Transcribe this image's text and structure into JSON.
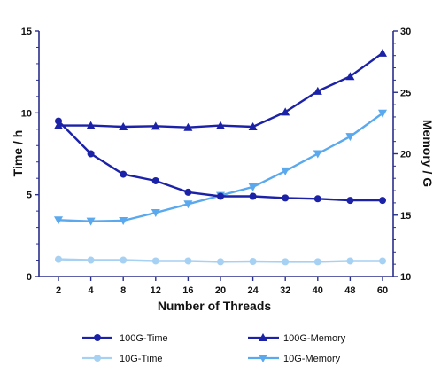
{
  "chart_data": {
    "type": "line",
    "xlabel": "Number of Threads",
    "ylabel_left": "Time / h",
    "ylabel_right": "Memory / G",
    "categories": [
      "2",
      "4",
      "8",
      "12",
      "16",
      "20",
      "24",
      "32",
      "40",
      "48",
      "60"
    ],
    "ylim_left": [
      0,
      15
    ],
    "yticks_left": [
      "0",
      "5",
      "10",
      "15"
    ],
    "ylim_right": [
      10,
      30
    ],
    "yticks_right": [
      "10",
      "15",
      "20",
      "25",
      "30"
    ],
    "grid": false,
    "legend_position": "bottom",
    "series": [
      {
        "name": "100G-Time",
        "axis": "left",
        "marker": "circle",
        "color": "#1c22a8",
        "values": [
          9.5,
          7.5,
          6.25,
          5.85,
          5.15,
          4.9,
          4.9,
          4.8,
          4.75,
          4.65,
          4.65
        ]
      },
      {
        "name": "100G-Memory",
        "axis": "right",
        "marker": "triangle-up",
        "color": "#1c22a8",
        "values": [
          22.3,
          22.3,
          22.2,
          22.25,
          22.15,
          22.3,
          22.2,
          23.4,
          25.1,
          26.3,
          28.2
        ]
      },
      {
        "name": "10G-Time",
        "axis": "left",
        "marker": "circle",
        "color": "#a6d1f3",
        "values": [
          1.05,
          1.0,
          1.0,
          0.95,
          0.95,
          0.9,
          0.92,
          0.9,
          0.9,
          0.95,
          0.95
        ]
      },
      {
        "name": "10G-Memory",
        "axis": "right",
        "marker": "triangle-down",
        "color": "#5aa8ee",
        "values": [
          14.6,
          14.5,
          14.55,
          15.2,
          15.9,
          16.6,
          17.3,
          18.6,
          20.0,
          21.4,
          23.3
        ]
      }
    ]
  },
  "legend": [
    {
      "label": "100G-Time",
      "marker": "circle",
      "color": "#1c22a8"
    },
    {
      "label": "100G-Memory",
      "marker": "triangle-up",
      "color": "#1c22a8"
    },
    {
      "label": "10G-Time",
      "marker": "circle",
      "color": "#a6d1f3"
    },
    {
      "label": "10G-Memory",
      "marker": "triangle-down",
      "color": "#5aa8ee"
    }
  ],
  "colors": {
    "axis_left": "#2a2f8a",
    "axis_right": "#2a2f8a"
  }
}
